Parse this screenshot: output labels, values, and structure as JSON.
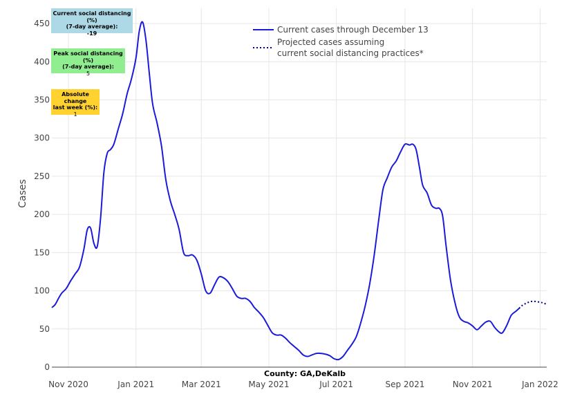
{
  "chart_data": {
    "type": "line",
    "ylabel": "Cases",
    "xlabel": "",
    "ylim": [
      0,
      470
    ],
    "yticks": [
      0,
      50,
      100,
      150,
      200,
      250,
      300,
      350,
      400,
      450
    ],
    "xticks": [
      {
        "label": "Nov 2020",
        "date": "2020-11-01"
      },
      {
        "label": "Jan 2021",
        "date": "2021-01-01"
      },
      {
        "label": "Mar 2021",
        "date": "2021-03-01"
      },
      {
        "label": "May 2021",
        "date": "2021-05-01"
      },
      {
        "label": "Jul 2021",
        "date": "2021-07-01"
      },
      {
        "label": "Sep 2021",
        "date": "2021-09-01"
      },
      {
        "label": "Nov 2021",
        "date": "2021-11-01"
      },
      {
        "label": "Jan 2022",
        "date": "2022-01-01"
      }
    ],
    "xlim": [
      "2020-10-17",
      "2022-01-07"
    ],
    "legend_position": "top-center",
    "colors": {
      "current": "#1a1adb",
      "projected": "#00008b",
      "grid": "#e6e6e6"
    },
    "series": [
      {
        "name": "Current cases through December 13",
        "style": "solid",
        "points": [
          [
            "2020-10-17",
            78
          ],
          [
            "2020-10-20",
            82
          ],
          [
            "2020-10-23",
            90
          ],
          [
            "2020-10-26",
            97
          ],
          [
            "2020-10-30",
            103
          ],
          [
            "2020-11-03",
            113
          ],
          [
            "2020-11-07",
            122
          ],
          [
            "2020-11-11",
            131
          ],
          [
            "2020-11-15",
            155
          ],
          [
            "2020-11-18",
            180
          ],
          [
            "2020-11-21",
            182
          ],
          [
            "2020-11-24",
            162
          ],
          [
            "2020-11-27",
            158
          ],
          [
            "2020-11-30",
            195
          ],
          [
            "2020-12-03",
            255
          ],
          [
            "2020-12-06",
            280
          ],
          [
            "2020-12-09",
            285
          ],
          [
            "2020-12-12",
            292
          ],
          [
            "2020-12-16",
            312
          ],
          [
            "2020-12-20",
            332
          ],
          [
            "2020-12-24",
            358
          ],
          [
            "2020-12-28",
            378
          ],
          [
            "2021-01-01",
            405
          ],
          [
            "2021-01-04",
            440
          ],
          [
            "2021-01-07",
            452
          ],
          [
            "2021-01-10",
            428
          ],
          [
            "2021-01-13",
            385
          ],
          [
            "2021-01-16",
            345
          ],
          [
            "2021-01-20",
            320
          ],
          [
            "2021-01-24",
            290
          ],
          [
            "2021-01-28",
            245
          ],
          [
            "2021-02-01",
            218
          ],
          [
            "2021-02-05",
            200
          ],
          [
            "2021-02-09",
            180
          ],
          [
            "2021-02-13",
            150
          ],
          [
            "2021-02-17",
            146
          ],
          [
            "2021-02-21",
            147
          ],
          [
            "2021-02-25",
            140
          ],
          [
            "2021-03-01",
            122
          ],
          [
            "2021-03-05",
            100
          ],
          [
            "2021-03-09",
            97
          ],
          [
            "2021-03-13",
            108
          ],
          [
            "2021-03-17",
            118
          ],
          [
            "2021-03-21",
            117
          ],
          [
            "2021-03-25",
            112
          ],
          [
            "2021-03-29",
            103
          ],
          [
            "2021-04-02",
            93
          ],
          [
            "2021-04-06",
            90
          ],
          [
            "2021-04-10",
            90
          ],
          [
            "2021-04-14",
            86
          ],
          [
            "2021-04-18",
            78
          ],
          [
            "2021-04-22",
            72
          ],
          [
            "2021-04-26",
            65
          ],
          [
            "2021-04-30",
            55
          ],
          [
            "2021-05-04",
            45
          ],
          [
            "2021-05-08",
            42
          ],
          [
            "2021-05-12",
            42
          ],
          [
            "2021-05-16",
            38
          ],
          [
            "2021-05-20",
            32
          ],
          [
            "2021-05-24",
            27
          ],
          [
            "2021-05-28",
            22
          ],
          [
            "2021-06-01",
            16
          ],
          [
            "2021-06-05",
            14
          ],
          [
            "2021-06-09",
            16
          ],
          [
            "2021-06-13",
            18
          ],
          [
            "2021-06-17",
            18
          ],
          [
            "2021-06-21",
            17
          ],
          [
            "2021-06-25",
            15
          ],
          [
            "2021-06-29",
            11
          ],
          [
            "2021-07-03",
            10
          ],
          [
            "2021-07-07",
            14
          ],
          [
            "2021-07-11",
            22
          ],
          [
            "2021-07-15",
            30
          ],
          [
            "2021-07-19",
            40
          ],
          [
            "2021-07-23",
            58
          ],
          [
            "2021-07-27",
            80
          ],
          [
            "2021-07-31",
            108
          ],
          [
            "2021-08-04",
            145
          ],
          [
            "2021-08-08",
            190
          ],
          [
            "2021-08-12",
            232
          ],
          [
            "2021-08-16",
            248
          ],
          [
            "2021-08-20",
            262
          ],
          [
            "2021-08-24",
            270
          ],
          [
            "2021-08-28",
            282
          ],
          [
            "2021-09-01",
            292
          ],
          [
            "2021-09-05",
            291
          ],
          [
            "2021-09-08",
            292
          ],
          [
            "2021-09-11",
            285
          ],
          [
            "2021-09-14",
            262
          ],
          [
            "2021-09-17",
            238
          ],
          [
            "2021-09-21",
            228
          ],
          [
            "2021-09-25",
            212
          ],
          [
            "2021-09-29",
            208
          ],
          [
            "2021-10-02",
            208
          ],
          [
            "2021-10-05",
            198
          ],
          [
            "2021-10-08",
            160
          ],
          [
            "2021-10-12",
            115
          ],
          [
            "2021-10-16",
            85
          ],
          [
            "2021-10-20",
            66
          ],
          [
            "2021-10-24",
            60
          ],
          [
            "2021-10-28",
            58
          ],
          [
            "2021-11-01",
            54
          ],
          [
            "2021-11-05",
            49
          ],
          [
            "2021-11-09",
            54
          ],
          [
            "2021-11-13",
            59
          ],
          [
            "2021-11-17",
            60
          ],
          [
            "2021-11-21",
            52
          ],
          [
            "2021-11-25",
            46
          ],
          [
            "2021-11-28",
            45
          ],
          [
            "2021-12-02",
            55
          ],
          [
            "2021-12-06",
            68
          ],
          [
            "2021-12-10",
            73
          ],
          [
            "2021-12-13",
            77
          ]
        ]
      },
      {
        "name": "Projected cases assuming current social distancing practices*",
        "style": "dotted",
        "points": [
          [
            "2021-12-13",
            77
          ],
          [
            "2021-12-16",
            81
          ],
          [
            "2021-12-20",
            84
          ],
          [
            "2021-12-24",
            86
          ],
          [
            "2021-12-28",
            86
          ],
          [
            "2022-01-01",
            85
          ],
          [
            "2022-01-04",
            84
          ],
          [
            "2022-01-07",
            82
          ]
        ]
      }
    ]
  },
  "legend": {
    "current_label": "Current cases through December 13",
    "projected_label_line1": "Projected cases assuming",
    "projected_label_line2": "current social distancing practices*"
  },
  "info_boxes": {
    "current": {
      "title": "Current social distancing (%)",
      "subtitle": "(7-day average):",
      "value": "-19",
      "color": "#add8e6"
    },
    "peak": {
      "title": "Peak social distancing (%)",
      "subtitle": "(7-day average):",
      "value": "5",
      "color": "#90ee90"
    },
    "change": {
      "title": "Absolute change",
      "subtitle": "last week (%):",
      "value": "1",
      "color": "#ffd230"
    }
  },
  "county_label": "County: GA,DeKalb"
}
